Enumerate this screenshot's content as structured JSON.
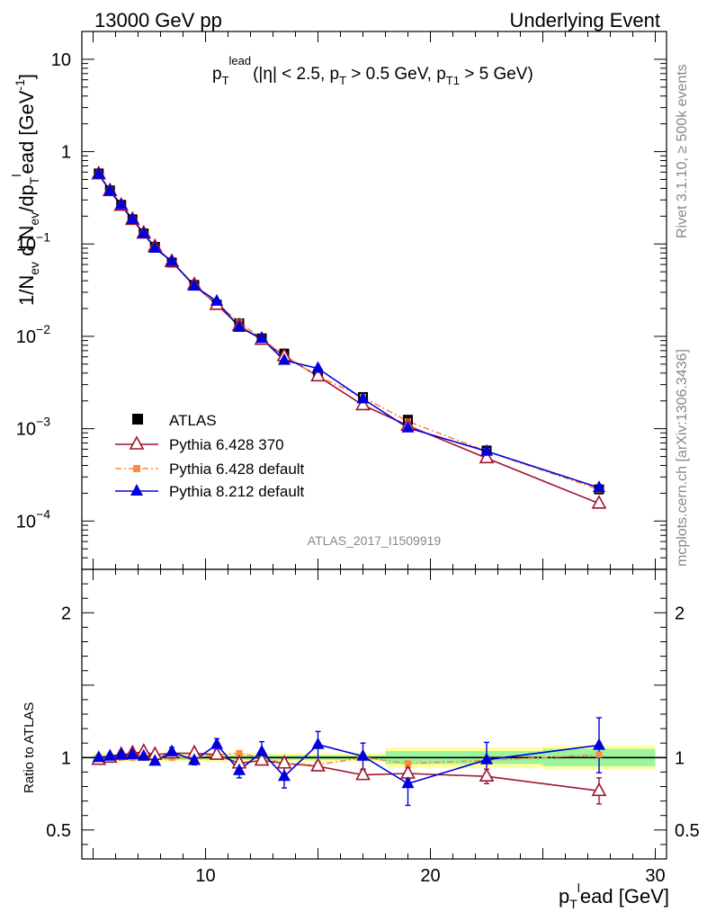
{
  "header": {
    "left": "13000 GeV pp",
    "right": "Underlying Event"
  },
  "plot_title": {
    "main": "p",
    "sub": "T",
    "sup": "lead",
    "rest": "(|η| < 2.5, p",
    "rest_sub": "T",
    "rest2": " > 0.5 GeV, p",
    "rest2_sub": "T1",
    "rest3": " > 5 GeV)"
  },
  "side": {
    "rivet": "Rivet 3.1.10, ≥ 500k events",
    "url": "mcplots.cern.ch [arXiv:1306.3436]"
  },
  "watermark": "ATLAS_2017_I1509919",
  "ylabel_main": "1/N_ev d N_ev/dp_T^l ead [GeV^-1]",
  "ylabel_ratio": "Ratio to ATLAS",
  "xlabel": "p_T^l ead [GeV]",
  "legend": [
    {
      "label": "ATLAS"
    },
    {
      "label": "Pythia 6.428 370"
    },
    {
      "label": "Pythia 6.428 default"
    },
    {
      "label": "Pythia 8.212 default"
    }
  ],
  "colors": {
    "atlas": "#000000",
    "p6_370": "#a0142d",
    "p6_default": "#ff8a3c",
    "p8": "#0000dd",
    "band_green": "#9cf59c",
    "band_yellow": "#ffff99"
  },
  "chart_data": {
    "type": "line",
    "x": [
      5.25,
      5.75,
      6.25,
      6.75,
      7.25,
      7.75,
      8.5,
      9.5,
      10.5,
      11.5,
      12.5,
      13.5,
      15.0,
      17.0,
      19.0,
      22.5,
      27.5
    ],
    "xlim": [
      4.5,
      30.5
    ],
    "xticks": [
      10,
      20,
      30
    ],
    "main": {
      "yscale": "log",
      "ylim": [
        3e-05,
        20
      ],
      "yticks": [
        {
          "v": 10,
          "label": "10"
        },
        {
          "v": 1,
          "label": "1"
        },
        {
          "v": 0.1,
          "label": "10",
          "exp": "−1"
        },
        {
          "v": 0.01,
          "label": "10",
          "exp": "−2"
        },
        {
          "v": 0.001,
          "label": "10",
          "exp": "−3"
        },
        {
          "v": 0.0001,
          "label": "10",
          "exp": "−4"
        }
      ],
      "series": [
        {
          "name": "ATLAS",
          "values": [
            0.58,
            0.38,
            0.265,
            0.185,
            0.13,
            0.093,
            0.063,
            0.036,
            0.022,
            0.0138,
            0.0095,
            0.0065,
            0.0039,
            0.0022,
            0.00125,
            0.00058,
            0.00022
          ]
        },
        {
          "name": "Pythia 6.428 370",
          "values": [
            0.57,
            0.375,
            0.26,
            0.183,
            0.13,
            0.093,
            0.064,
            0.036,
            0.022,
            0.013,
            0.0092,
            0.0061,
            0.0037,
            0.0018,
            0.00108,
            0.00048,
            0.000155
          ]
        },
        {
          "name": "Pythia 6.428 default",
          "values": [
            0.58,
            0.38,
            0.265,
            0.185,
            0.13,
            0.093,
            0.064,
            0.036,
            0.0225,
            0.0142,
            0.0095,
            0.0062,
            0.0037,
            0.0022,
            0.0012,
            0.00057,
            0.00022
          ]
        },
        {
          "name": "Pythia 8.212 default",
          "values": [
            0.57,
            0.375,
            0.265,
            0.185,
            0.13,
            0.09,
            0.065,
            0.035,
            0.024,
            0.0125,
            0.0095,
            0.0055,
            0.0045,
            0.0021,
            0.00102,
            0.00057,
            0.00023
          ]
        }
      ]
    },
    "ratio": {
      "ylabel": "Ratio to ATLAS",
      "ylim": [
        0.3,
        2.3
      ],
      "yticks": [
        {
          "v": 0.5,
          "label": "0.5"
        },
        {
          "v": 1,
          "label": "1"
        },
        {
          "v": 2,
          "label": "2"
        }
      ],
      "bands": [
        {
          "x0": 5,
          "x1": 18,
          "green": 0.015,
          "yellow": 0.03
        },
        {
          "x0": 18,
          "x1": 25,
          "green": 0.045,
          "yellow": 0.07
        },
        {
          "x0": 25,
          "x1": 30,
          "green": 0.06,
          "yellow": 0.08
        }
      ],
      "series": [
        {
          "name": "Pythia 6.428 370",
          "values": [
            0.985,
            1.0,
            1.02,
            1.03,
            1.04,
            1.02,
            1.03,
            1.03,
            1.02,
            0.96,
            0.98,
            0.96,
            0.94,
            0.88,
            0.89,
            0.87,
            0.77
          ],
          "err": [
            0.01,
            0.01,
            0.01,
            0.01,
            0.01,
            0.01,
            0.02,
            0.02,
            0.02,
            0.03,
            0.03,
            0.03,
            0.03,
            0.03,
            0.04,
            0.05,
            0.09
          ]
        },
        {
          "name": "Pythia 6.428 default",
          "values": [
            1.0,
            1.0,
            1.0,
            1.0,
            1.0,
            1.0,
            1.0,
            1.0,
            1.02,
            1.03,
            1.0,
            0.96,
            0.95,
            1.0,
            0.96,
            0.98,
            1.02
          ],
          "err": [
            0,
            0,
            0,
            0,
            0,
            0,
            0,
            0,
            0,
            0,
            0,
            0,
            0,
            0,
            0,
            0,
            0
          ]
        },
        {
          "name": "Pythia 8.212 default",
          "values": [
            1.0,
            1.01,
            1.02,
            1.02,
            1.01,
            0.975,
            1.04,
            0.98,
            1.09,
            0.91,
            1.04,
            0.87,
            1.09,
            1.01,
            0.82,
            0.985,
            1.085
          ],
          "err": [
            0.01,
            0.015,
            0.015,
            0.02,
            0.02,
            0.025,
            0.03,
            0.03,
            0.04,
            0.05,
            0.07,
            0.08,
            0.09,
            0.09,
            0.15,
            0.12,
            0.19
          ]
        }
      ]
    }
  }
}
